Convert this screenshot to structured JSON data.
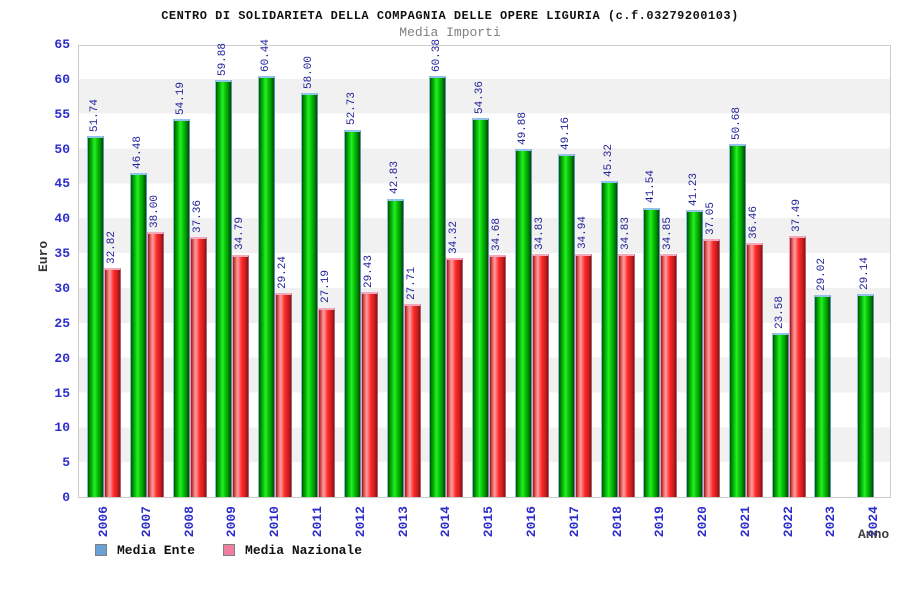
{
  "title": "CENTRO DI SOLIDARIETA DELLA COMPAGNIA DELLE OPERE LIGURIA (c.f.03279200103)",
  "subtitle": "Media Importi",
  "axes": {
    "y_title": "Euro",
    "x_title": "Anno",
    "y_ticks": [
      0,
      5,
      10,
      15,
      20,
      25,
      30,
      35,
      40,
      45,
      50,
      55,
      60,
      65
    ]
  },
  "legend": {
    "items": [
      {
        "label": "Media Ente",
        "swatch_color": "#6aa1d8"
      },
      {
        "label": "Media Nazionale",
        "swatch_color": "#ee7f9f"
      }
    ]
  },
  "colors": {
    "bar_green_center": "#27f027",
    "bar_red_center": "#ff2a2a",
    "tick_label_blue": "#2d2dcc",
    "value_label_navy": "#222299",
    "band_gray": "#f1f1f1"
  },
  "chart_data": {
    "type": "bar",
    "title": "Media Importi",
    "xlabel": "Anno",
    "ylabel": "Euro",
    "ylim": [
      0,
      65
    ],
    "grid": "horizontal-bands-alternating",
    "legend_position": "bottom-left",
    "categories": [
      "2006",
      "2007",
      "2008",
      "2009",
      "2010",
      "2011",
      "2012",
      "2013",
      "2014",
      "2015",
      "2016",
      "2017",
      "2018",
      "2019",
      "2020",
      "2021",
      "2022",
      "2023",
      "2024"
    ],
    "series": [
      {
        "name": "Media Ente",
        "bar_color": "green",
        "values": [
          51.74,
          46.48,
          54.19,
          59.88,
          60.44,
          58.0,
          52.73,
          42.83,
          60.38,
          54.36,
          49.88,
          49.16,
          45.32,
          41.54,
          41.23,
          50.68,
          23.58,
          29.02,
          29.14
        ]
      },
      {
        "name": "Media Nazionale",
        "bar_color": "red",
        "values": [
          32.82,
          38.0,
          37.36,
          34.79,
          29.24,
          27.19,
          29.43,
          27.71,
          34.32,
          34.68,
          34.83,
          34.94,
          34.83,
          34.85,
          37.05,
          36.46,
          37.49,
          null,
          null
        ]
      }
    ]
  }
}
